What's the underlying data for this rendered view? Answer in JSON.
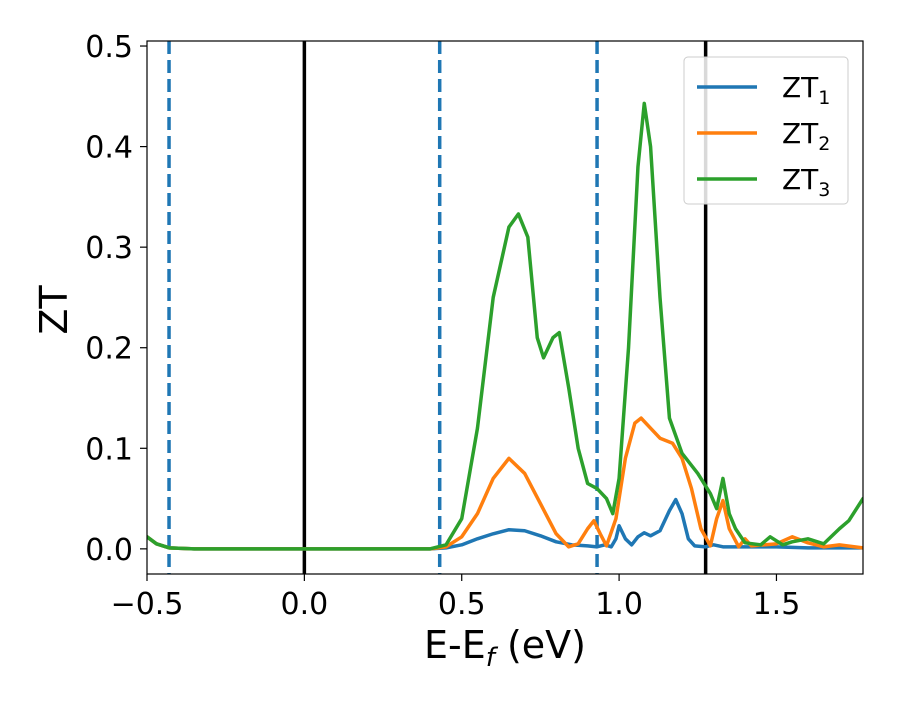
{
  "chart_data": {
    "type": "line",
    "title": "",
    "xlabel_main": "E-E",
    "xlabel_sub": "f",
    "xlabel_tail": " (eV)",
    "ylabel": "ZT",
    "xlim": [
      -0.5,
      1.775
    ],
    "ylim": [
      -0.025,
      0.505
    ],
    "grid": false,
    "legend_position": "top-right",
    "x_ticks": [
      {
        "value": -0.5,
        "label": "−0.5"
      },
      {
        "value": 0.0,
        "label": "0.0"
      },
      {
        "value": 0.5,
        "label": "0.5"
      },
      {
        "value": 1.0,
        "label": "1.0"
      },
      {
        "value": 1.5,
        "label": "1.5"
      }
    ],
    "y_ticks": [
      {
        "value": 0.0,
        "label": "0.0"
      },
      {
        "value": 0.1,
        "label": "0.1"
      },
      {
        "value": 0.2,
        "label": "0.2"
      },
      {
        "value": 0.3,
        "label": "0.3"
      },
      {
        "value": 0.4,
        "label": "0.4"
      },
      {
        "value": 0.5,
        "label": "0.5"
      }
    ],
    "vlines": [
      {
        "x": -0.43,
        "style": "dashed",
        "color": "#1f77b4"
      },
      {
        "x": 0.0,
        "style": "solid",
        "color": "#000000"
      },
      {
        "x": 0.43,
        "style": "dashed",
        "color": "#1f77b4"
      },
      {
        "x": 0.93,
        "style": "dashed",
        "color": "#1f77b4"
      },
      {
        "x": 1.275,
        "style": "solid",
        "color": "#000000"
      }
    ],
    "series": [
      {
        "name": "ZT",
        "sub": "1",
        "color": "#1f77b4",
        "points": [
          [
            -0.5,
            0.012
          ],
          [
            -0.47,
            0.005
          ],
          [
            -0.43,
            0.001
          ],
          [
            -0.35,
            0.0
          ],
          [
            0.0,
            0.0
          ],
          [
            0.4,
            0.0
          ],
          [
            0.45,
            0.001
          ],
          [
            0.5,
            0.004
          ],
          [
            0.55,
            0.01
          ],
          [
            0.6,
            0.015
          ],
          [
            0.65,
            0.019
          ],
          [
            0.7,
            0.018
          ],
          [
            0.75,
            0.013
          ],
          [
            0.8,
            0.007
          ],
          [
            0.85,
            0.004
          ],
          [
            0.9,
            0.003
          ],
          [
            0.93,
            0.002
          ],
          [
            0.955,
            0.004
          ],
          [
            0.975,
            0.002
          ],
          [
            0.99,
            0.01
          ],
          [
            1.0,
            0.023
          ],
          [
            1.02,
            0.01
          ],
          [
            1.04,
            0.004
          ],
          [
            1.06,
            0.012
          ],
          [
            1.08,
            0.016
          ],
          [
            1.1,
            0.013
          ],
          [
            1.13,
            0.018
          ],
          [
            1.16,
            0.038
          ],
          [
            1.18,
            0.049
          ],
          [
            1.2,
            0.035
          ],
          [
            1.22,
            0.01
          ],
          [
            1.24,
            0.003
          ],
          [
            1.275,
            0.002
          ],
          [
            1.3,
            0.004
          ],
          [
            1.33,
            0.002
          ],
          [
            1.4,
            0.002
          ],
          [
            1.5,
            0.002
          ],
          [
            1.6,
            0.001
          ],
          [
            1.7,
            0.001
          ],
          [
            1.775,
            0.001
          ]
        ]
      },
      {
        "name": "ZT",
        "sub": "2",
        "color": "#ff7f0e",
        "points": [
          [
            -0.5,
            0.012
          ],
          [
            -0.47,
            0.005
          ],
          [
            -0.43,
            0.001
          ],
          [
            -0.35,
            0.0
          ],
          [
            0.0,
            0.0
          ],
          [
            0.4,
            0.0
          ],
          [
            0.45,
            0.002
          ],
          [
            0.5,
            0.012
          ],
          [
            0.55,
            0.035
          ],
          [
            0.6,
            0.07
          ],
          [
            0.65,
            0.09
          ],
          [
            0.7,
            0.075
          ],
          [
            0.75,
            0.045
          ],
          [
            0.8,
            0.015
          ],
          [
            0.84,
            0.002
          ],
          [
            0.87,
            0.005
          ],
          [
            0.9,
            0.02
          ],
          [
            0.92,
            0.028
          ],
          [
            0.94,
            0.015
          ],
          [
            0.96,
            0.003
          ],
          [
            0.99,
            0.03
          ],
          [
            1.02,
            0.09
          ],
          [
            1.05,
            0.125
          ],
          [
            1.07,
            0.13
          ],
          [
            1.1,
            0.12
          ],
          [
            1.13,
            0.11
          ],
          [
            1.17,
            0.105
          ],
          [
            1.2,
            0.09
          ],
          [
            1.23,
            0.06
          ],
          [
            1.26,
            0.02
          ],
          [
            1.29,
            0.003
          ],
          [
            1.31,
            0.03
          ],
          [
            1.33,
            0.048
          ],
          [
            1.35,
            0.02
          ],
          [
            1.38,
            0.002
          ],
          [
            1.4,
            0.01
          ],
          [
            1.42,
            0.003
          ],
          [
            1.5,
            0.005
          ],
          [
            1.55,
            0.012
          ],
          [
            1.6,
            0.006
          ],
          [
            1.65,
            0.002
          ],
          [
            1.7,
            0.004
          ],
          [
            1.775,
            0.001
          ]
        ]
      },
      {
        "name": "ZT",
        "sub": "3",
        "color": "#2ca02c",
        "points": [
          [
            -0.5,
            0.012
          ],
          [
            -0.47,
            0.005
          ],
          [
            -0.43,
            0.001
          ],
          [
            -0.35,
            0.0
          ],
          [
            0.0,
            0.0
          ],
          [
            0.4,
            0.0
          ],
          [
            0.45,
            0.004
          ],
          [
            0.5,
            0.03
          ],
          [
            0.55,
            0.12
          ],
          [
            0.6,
            0.25
          ],
          [
            0.65,
            0.32
          ],
          [
            0.68,
            0.333
          ],
          [
            0.71,
            0.31
          ],
          [
            0.74,
            0.21
          ],
          [
            0.76,
            0.19
          ],
          [
            0.79,
            0.21
          ],
          [
            0.81,
            0.215
          ],
          [
            0.84,
            0.16
          ],
          [
            0.87,
            0.1
          ],
          [
            0.9,
            0.065
          ],
          [
            0.93,
            0.06
          ],
          [
            0.96,
            0.05
          ],
          [
            0.98,
            0.035
          ],
          [
            1.0,
            0.07
          ],
          [
            1.03,
            0.2
          ],
          [
            1.06,
            0.38
          ],
          [
            1.08,
            0.443
          ],
          [
            1.1,
            0.4
          ],
          [
            1.13,
            0.25
          ],
          [
            1.16,
            0.13
          ],
          [
            1.2,
            0.095
          ],
          [
            1.25,
            0.075
          ],
          [
            1.29,
            0.055
          ],
          [
            1.31,
            0.04
          ],
          [
            1.33,
            0.07
          ],
          [
            1.35,
            0.035
          ],
          [
            1.37,
            0.02
          ],
          [
            1.4,
            0.006
          ],
          [
            1.45,
            0.004
          ],
          [
            1.48,
            0.012
          ],
          [
            1.52,
            0.004
          ],
          [
            1.55,
            0.007
          ],
          [
            1.6,
            0.01
          ],
          [
            1.65,
            0.005
          ],
          [
            1.7,
            0.02
          ],
          [
            1.73,
            0.028
          ],
          [
            1.775,
            0.05
          ]
        ]
      }
    ]
  }
}
